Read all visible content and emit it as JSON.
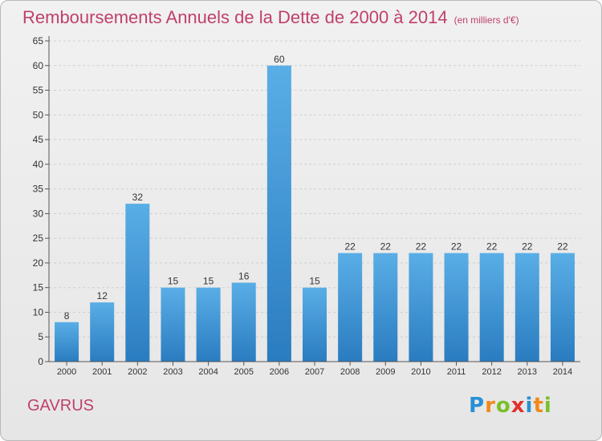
{
  "title": "Remboursements Annuels de la Dette de 2000 à 2014",
  "unit": "(en milliers d'€)",
  "town": "GAVRUS",
  "logo": {
    "text": "Proxiti",
    "letters": [
      {
        "ch": "P",
        "color": "#2a8fd6"
      },
      {
        "ch": "r",
        "color": "#f08a1c"
      },
      {
        "ch": "o",
        "color": "#7bbf2a"
      },
      {
        "ch": "x",
        "color": "#e0322d"
      },
      {
        "ch": "i",
        "color": "#2a8fd6"
      },
      {
        "ch": "t",
        "color": "#f08a1c"
      },
      {
        "ch": "i",
        "color": "#7bbf2a"
      }
    ]
  },
  "colors": {
    "title": "#c0406a",
    "bar_top": "#5aaee6",
    "bar_bottom": "#2a7cc0",
    "grid": "#cfcfcf",
    "axis_text": "#333333"
  },
  "chart_data": {
    "type": "bar",
    "categories": [
      "2000",
      "2001",
      "2002",
      "2003",
      "2004",
      "2005",
      "2006",
      "2007",
      "2008",
      "2009",
      "2010",
      "2011",
      "2012",
      "2013",
      "2014"
    ],
    "values": [
      8,
      12,
      32,
      15,
      15,
      16,
      60,
      15,
      22,
      22,
      22,
      22,
      22,
      22,
      22
    ],
    "ylim": [
      0,
      65
    ],
    "yticks": [
      0,
      5,
      10,
      15,
      20,
      25,
      30,
      35,
      40,
      45,
      50,
      55,
      60,
      65
    ],
    "grid": true,
    "legend": "none"
  }
}
